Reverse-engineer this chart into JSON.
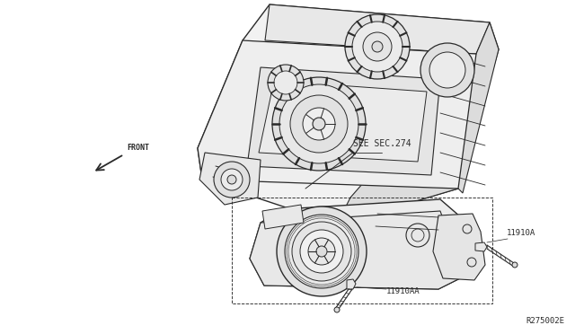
{
  "bg_color": "#ffffff",
  "line_color": "#2a2a2a",
  "text_color": "#2a2a2a",
  "fig_width": 6.4,
  "fig_height": 3.72,
  "dpi": 100,
  "diagram_ref": "R275002E",
  "label_front": "FRONT",
  "label_sec": "SEE SEC.274",
  "label_part1": "11910A",
  "label_part2": "11910AA"
}
